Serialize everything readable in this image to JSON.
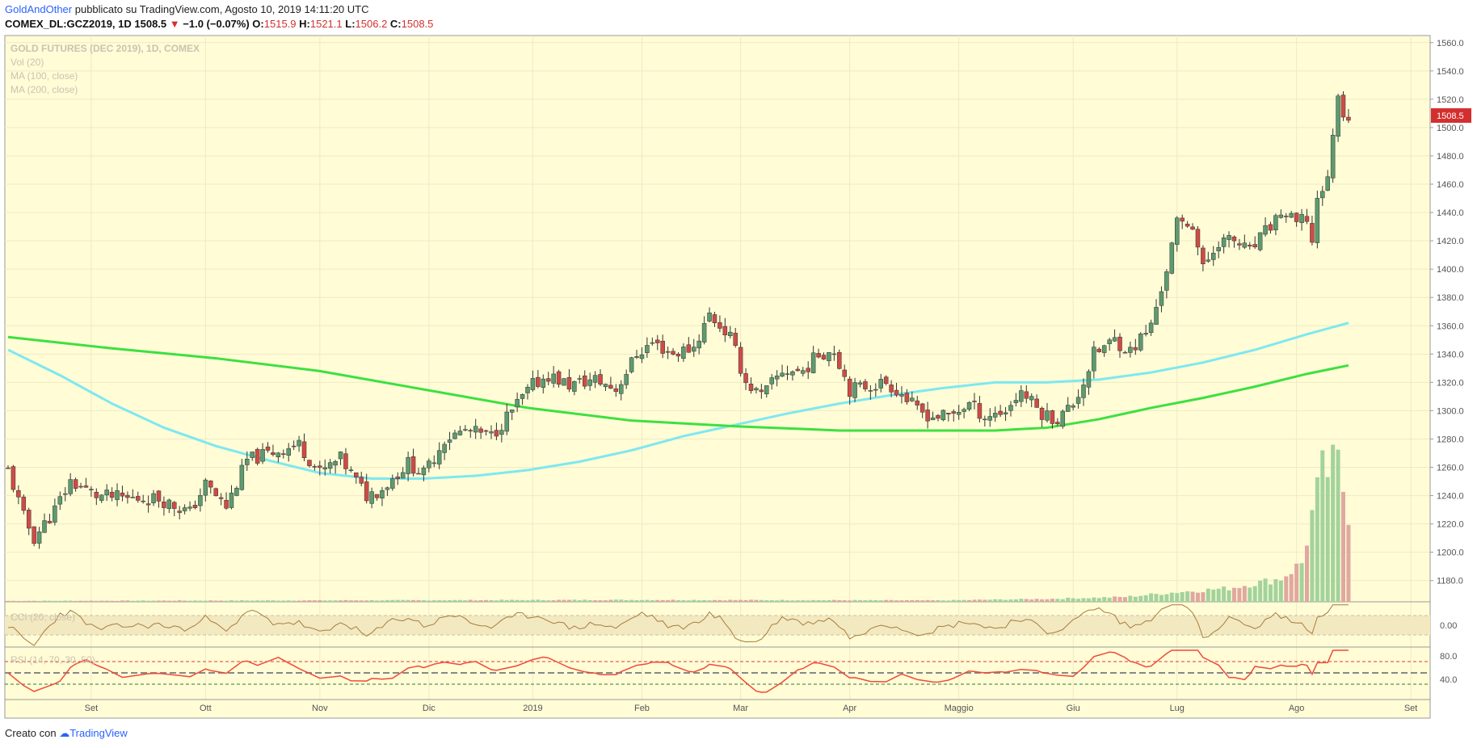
{
  "header": {
    "author": "GoldAndOther",
    "published_text": "pubblicato su TradingView.com, Agosto 10, 2019 14:11:20 UTC",
    "symbol": "COMEX_DL:GCZ2019, 1D",
    "last": "1508.5",
    "change": "−1.0 (−0.07%)",
    "open_label": "O:",
    "open": "1515.9",
    "high_label": "H:",
    "high": "1521.1",
    "low_label": "L:",
    "low": "1506.2",
    "close_label": "C:",
    "close": "1508.5"
  },
  "legend": {
    "title": "GOLD FUTURES (DEC 2019), 1D, COMEX",
    "vol": "Vol (20)",
    "ma100": "MA (100, close)",
    "ma200": "MA (200, close)",
    "sub1": "CCI (20, close)",
    "sub2": "RSI (14, 70, 30, 50)"
  },
  "footer": {
    "created_with": "Creato con",
    "brand": "TradingView"
  },
  "colors": {
    "up": "#5d9b6e",
    "down": "#cf4b45",
    "vol_up": "#a3d39c",
    "vol_down": "#e0a8a0",
    "ma100": "#7ee8f0",
    "ma200": "#3de040",
    "bg": "#fffcd6",
    "osc1": "#a67c3f",
    "osc2": "#f04a3a",
    "price_tag": "#d32f2f"
  },
  "chart_data": {
    "type": "candlestick",
    "title": "GOLD FUTURES (DEC 2019), 1D, COMEX",
    "y_axis": {
      "range": [
        1165,
        1565
      ],
      "ticks": [
        "1560.0",
        "1540.0",
        "1520.0",
        "1500.0",
        "1480.0",
        "1460.0",
        "1440.0",
        "1420.0",
        "1400.0",
        "1380.0",
        "1360.0",
        "1340.0",
        "1320.0",
        "1300.0",
        "1280.0",
        "1260.0",
        "1240.0",
        "1220.0",
        "1200.0",
        "1180.0"
      ]
    },
    "x_axis": {
      "labels": [
        {
          "label": "Set",
          "day": 16
        },
        {
          "label": "Ott",
          "day": 38
        },
        {
          "label": "Nov",
          "day": 60
        },
        {
          "label": "Dic",
          "day": 81
        },
        {
          "label": "2019",
          "day": 101
        },
        {
          "label": "Feb",
          "day": 122
        },
        {
          "label": "Mar",
          "day": 141
        },
        {
          "label": "Apr",
          "day": 162
        },
        {
          "label": "Maggio",
          "day": 183
        },
        {
          "label": "Giu",
          "day": 205
        },
        {
          "label": "Lug",
          "day": 225
        },
        {
          "label": "Ago",
          "day": 248
        },
        {
          "label": "Set",
          "day": 270
        }
      ]
    },
    "last_price": "1508.5",
    "ma100": [
      [
        0,
        1343
      ],
      [
        10,
        1325
      ],
      [
        20,
        1305
      ],
      [
        30,
        1288
      ],
      [
        40,
        1275
      ],
      [
        50,
        1265
      ],
      [
        60,
        1256
      ],
      [
        70,
        1252
      ],
      [
        80,
        1252
      ],
      [
        90,
        1254
      ],
      [
        100,
        1258
      ],
      [
        110,
        1264
      ],
      [
        120,
        1272
      ],
      [
        130,
        1282
      ],
      [
        140,
        1290
      ],
      [
        150,
        1298
      ],
      [
        160,
        1305
      ],
      [
        170,
        1311
      ],
      [
        180,
        1316
      ],
      [
        190,
        1320
      ],
      [
        200,
        1320
      ],
      [
        210,
        1322
      ],
      [
        220,
        1327
      ],
      [
        230,
        1334
      ],
      [
        240,
        1343
      ],
      [
        250,
        1354
      ],
      [
        258,
        1362
      ]
    ],
    "ma200": [
      [
        0,
        1352
      ],
      [
        20,
        1344
      ],
      [
        40,
        1337
      ],
      [
        60,
        1328
      ],
      [
        80,
        1315
      ],
      [
        100,
        1302
      ],
      [
        120,
        1293
      ],
      [
        140,
        1289
      ],
      [
        160,
        1286
      ],
      [
        180,
        1286
      ],
      [
        190,
        1286
      ],
      [
        200,
        1288
      ],
      [
        210,
        1294
      ],
      [
        220,
        1302
      ],
      [
        230,
        1309
      ],
      [
        240,
        1317
      ],
      [
        250,
        1326
      ],
      [
        258,
        1332
      ]
    ],
    "price_keypoints": [
      [
        0,
        1258
      ],
      [
        3,
        1225
      ],
      [
        5,
        1210
      ],
      [
        9,
        1230
      ],
      [
        12,
        1250
      ],
      [
        17,
        1240
      ],
      [
        23,
        1238
      ],
      [
        29,
        1238
      ],
      [
        35,
        1228
      ],
      [
        38,
        1248
      ],
      [
        42,
        1232
      ],
      [
        46,
        1265
      ],
      [
        52,
        1272
      ],
      [
        56,
        1276
      ],
      [
        60,
        1256
      ],
      [
        64,
        1266
      ],
      [
        69,
        1240
      ],
      [
        72,
        1245
      ],
      [
        77,
        1263
      ],
      [
        80,
        1255
      ],
      [
        84,
        1280
      ],
      [
        88,
        1286
      ],
      [
        93,
        1282
      ],
      [
        97,
        1300
      ],
      [
        101,
        1318
      ],
      [
        104,
        1325
      ],
      [
        108,
        1318
      ],
      [
        113,
        1322
      ],
      [
        117,
        1315
      ],
      [
        121,
        1340
      ],
      [
        124,
        1348
      ],
      [
        128,
        1340
      ],
      [
        132,
        1345
      ],
      [
        135,
        1368
      ],
      [
        139,
        1352
      ],
      [
        142,
        1320
      ],
      [
        145,
        1310
      ],
      [
        149,
        1328
      ],
      [
        153,
        1328
      ],
      [
        156,
        1340
      ],
      [
        159,
        1343
      ],
      [
        162,
        1315
      ],
      [
        166,
        1318
      ],
      [
        169,
        1320
      ],
      [
        172,
        1312
      ],
      [
        175,
        1300
      ],
      [
        178,
        1296
      ],
      [
        181,
        1296
      ],
      [
        185,
        1305
      ],
      [
        188,
        1296
      ],
      [
        192,
        1300
      ],
      [
        195,
        1314
      ],
      [
        199,
        1298
      ],
      [
        202,
        1294
      ],
      [
        205,
        1305
      ],
      [
        207,
        1320
      ],
      [
        209,
        1340
      ],
      [
        213,
        1350
      ],
      [
        216,
        1342
      ],
      [
        220,
        1360
      ],
      [
        223,
        1400
      ],
      [
        225,
        1432
      ],
      [
        228,
        1432
      ],
      [
        230,
        1400
      ],
      [
        233,
        1420
      ],
      [
        236,
        1420
      ],
      [
        239,
        1412
      ],
      [
        242,
        1426
      ],
      [
        245,
        1440
      ],
      [
        248,
        1432
      ],
      [
        250,
        1436
      ],
      [
        251,
        1418
      ],
      [
        252,
        1452
      ],
      [
        254,
        1462
      ],
      [
        255,
        1498
      ],
      [
        256,
        1520
      ],
      [
        257,
        1512
      ],
      [
        258,
        1508
      ]
    ],
    "volume_keypoints": [
      [
        0,
        2
      ],
      [
        120,
        4
      ],
      [
        180,
        3
      ],
      [
        200,
        6
      ],
      [
        215,
        10
      ],
      [
        225,
        20
      ],
      [
        235,
        28
      ],
      [
        245,
        48
      ],
      [
        249,
        80
      ],
      [
        251,
        180
      ],
      [
        253,
        265
      ],
      [
        256,
        280
      ],
      [
        258,
        190
      ]
    ],
    "volume_range": [
      0,
      300
    ],
    "osc1_range": [
      -200,
      200
    ],
    "osc2_range": [
      0,
      100
    ],
    "osc2_levels": [
      30,
      50,
      70
    ]
  }
}
